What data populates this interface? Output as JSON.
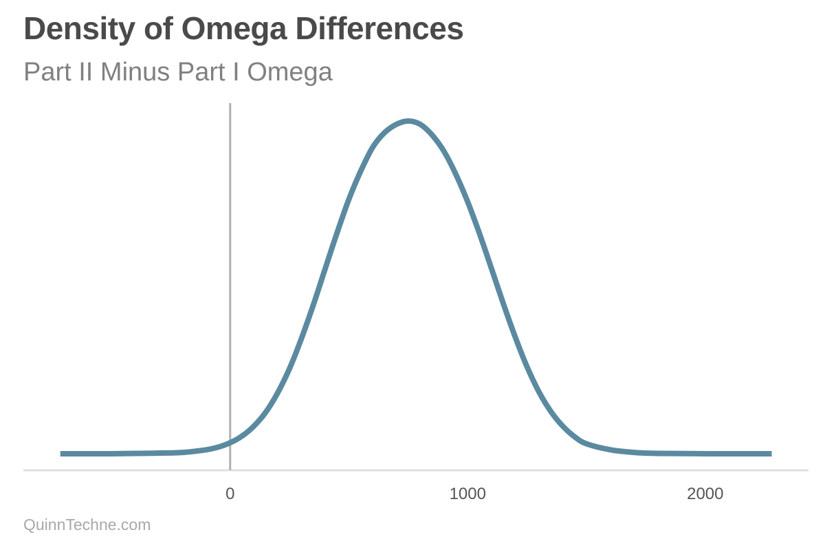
{
  "header": {
    "title": "Density of Omega Differences",
    "subtitle": "Part II Minus Part I Omega"
  },
  "footer": {
    "source": "QuinnTechne.com"
  },
  "chart_data": {
    "type": "line",
    "title": "Density of Omega Differences",
    "subtitle": "Part II Minus Part I Omega",
    "xlabel": "",
    "ylabel": "",
    "xlim": [
      -720,
      2290
    ],
    "ylim": [
      0,
      1
    ],
    "x_ticks": [
      0,
      1000,
      2000
    ],
    "x_tick_labels": [
      "0",
      "1000",
      "2000"
    ],
    "grid": false,
    "reference_line": {
      "x": 0,
      "color": "#b0b0b0"
    },
    "colors": {
      "series": "#5b8aa0",
      "axis": "#e0e0e0",
      "reference": "#b0b0b0"
    },
    "series": [
      {
        "x": [
          -715,
          -600,
          -500,
          -400,
          -300,
          -200,
          -100,
          -50,
          0,
          50,
          100,
          150,
          200,
          250,
          300,
          350,
          400,
          450,
          500,
          550,
          600,
          650,
          700,
          750,
          800,
          850,
          900,
          950,
          1000,
          1050,
          1100,
          1150,
          1200,
          1250,
          1300,
          1350,
          1400,
          1450,
          1500,
          1600,
          1700,
          1800,
          2000,
          2280
        ],
        "y": [
          0.0,
          0.0,
          0.0,
          0.001,
          0.002,
          0.004,
          0.012,
          0.02,
          0.033,
          0.053,
          0.083,
          0.125,
          0.183,
          0.256,
          0.346,
          0.447,
          0.556,
          0.664,
          0.765,
          0.85,
          0.921,
          0.965,
          0.99,
          1.0,
          0.99,
          0.958,
          0.909,
          0.84,
          0.757,
          0.661,
          0.557,
          0.451,
          0.351,
          0.261,
          0.186,
          0.127,
          0.083,
          0.051,
          0.03,
          0.012,
          0.004,
          0.001,
          0.0,
          0.0
        ]
      }
    ]
  }
}
